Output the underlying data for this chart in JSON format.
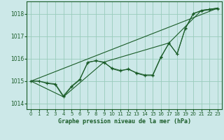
{
  "title": "Graphe pression niveau de la mer (hPa)",
  "background_color": "#cce8e8",
  "grid_color": "#99ccbb",
  "line_color": "#1a5c28",
  "xlim": [
    -0.5,
    23.5
  ],
  "ylim": [
    1013.75,
    1018.55
  ],
  "yticks": [
    1014,
    1015,
    1016,
    1017,
    1018
  ],
  "xticks": [
    0,
    1,
    2,
    3,
    4,
    5,
    6,
    7,
    8,
    9,
    10,
    11,
    12,
    13,
    14,
    15,
    16,
    17,
    18,
    19,
    20,
    21,
    22,
    23
  ],
  "series_hourly": [
    1015.0,
    1015.0,
    1014.9,
    1014.85,
    1014.3,
    1014.75,
    1015.05,
    1015.85,
    1015.9,
    1015.85,
    1015.55,
    1015.45,
    1015.55,
    1015.35,
    1015.25,
    1015.25,
    1016.05,
    1016.7,
    1016.2,
    1017.35,
    1018.0,
    1018.15,
    1018.2,
    1018.25
  ],
  "series_smooth": [
    1015.0,
    1015.0,
    1014.92,
    1014.88,
    1014.35,
    1014.78,
    1015.08,
    1015.82,
    1015.92,
    1015.82,
    1015.58,
    1015.48,
    1015.52,
    1015.38,
    1015.28,
    1015.28,
    1016.08,
    1016.68,
    1016.22,
    1017.32,
    1018.02,
    1018.12,
    1018.18,
    1018.22
  ],
  "trend_x": [
    0,
    23
  ],
  "trend_y": [
    1015.0,
    1018.25
  ],
  "envelope_x": [
    0,
    4,
    9,
    17,
    21,
    22,
    23
  ],
  "envelope_y": [
    1015.0,
    1014.3,
    1015.85,
    1016.7,
    1018.15,
    1018.2,
    1018.25
  ],
  "figwidth": 3.2,
  "figheight": 2.0,
  "dpi": 100
}
